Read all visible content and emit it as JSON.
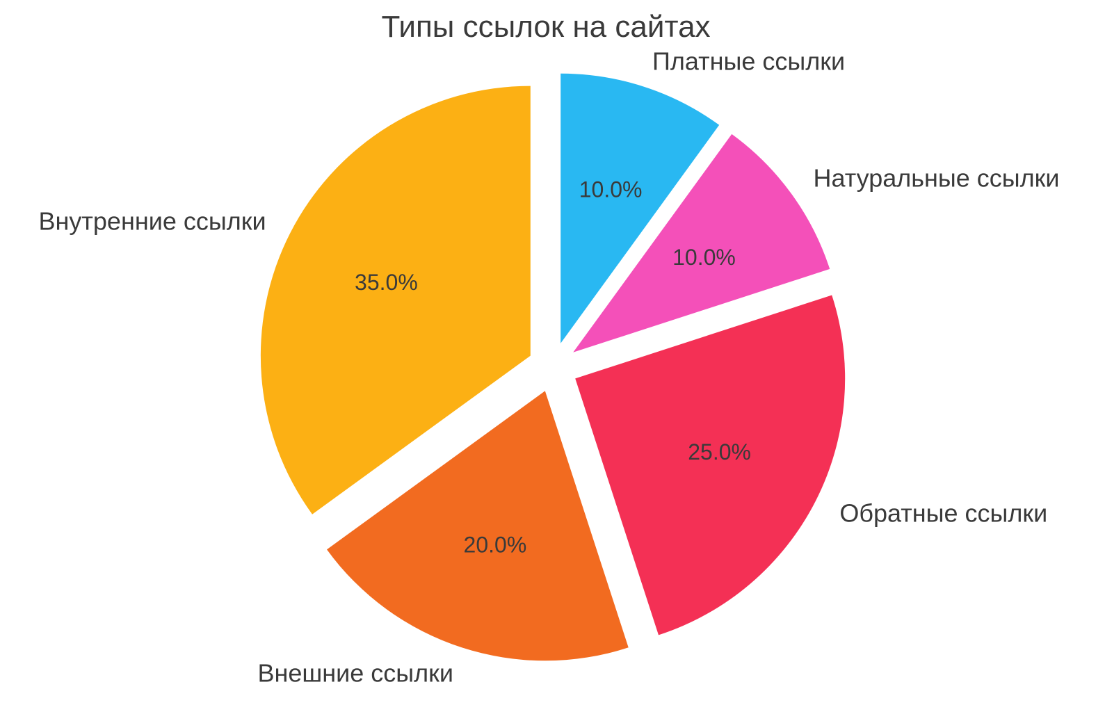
{
  "chart_data": {
    "type": "pie",
    "title": "Типы ссылок на сайтах",
    "slices": [
      {
        "label": "Платные ссылки",
        "value": 10.0,
        "pct_label": "10.0%",
        "color": "#29B8F2"
      },
      {
        "label": "Натуральные ссылки",
        "value": 10.0,
        "pct_label": "10.0%",
        "color": "#F450B9"
      },
      {
        "label": "Обратные ссылки",
        "value": 25.0,
        "pct_label": "25.0%",
        "color": "#F43055"
      },
      {
        "label": "Внешние ссылки",
        "value": 20.0,
        "pct_label": "20.0%",
        "color": "#F26B20"
      },
      {
        "label": "Внутренние ссылки",
        "value": 35.0,
        "pct_label": "35.0%",
        "color": "#FCB014"
      }
    ],
    "start_angle": 90,
    "direction": "clockwise",
    "explode": 0.093,
    "pct_distance": 0.6,
    "label_distance": 1.1,
    "legend": "none",
    "background_color": "#ffffff",
    "text_color": "#3a3a3a"
  }
}
